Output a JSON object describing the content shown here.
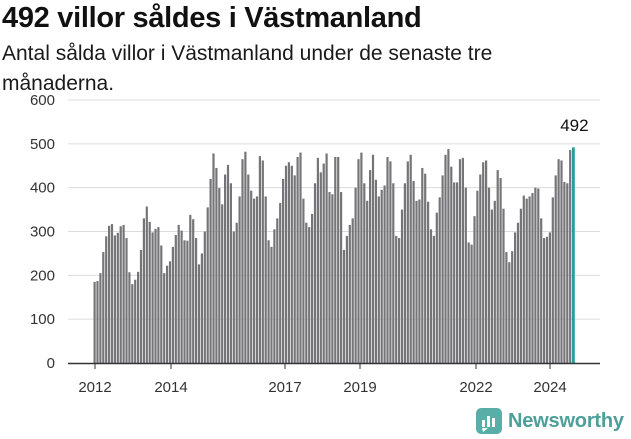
{
  "title": "492 villor såldes i Västmanland",
  "subtitle": "Antal sålda villor i Västmanland under de senaste tre månaderna.",
  "brand": "Newsworthy",
  "colors": {
    "bar": "#757478",
    "highlight": "#2e9c9a",
    "grid": "#dcdcdc",
    "axis": "#333333"
  },
  "chart_data": {
    "type": "bar",
    "x_tick_labels": [
      "2012",
      "2014",
      "2017",
      "2019",
      "2022",
      "2024"
    ],
    "y_ticks": [
      0,
      100,
      200,
      300,
      400,
      500,
      600
    ],
    "ylim": [
      0,
      600
    ],
    "annotation": "492",
    "highlight_last": true,
    "values": [
      185,
      187,
      205,
      253,
      289,
      313,
      317,
      291,
      297,
      312,
      315,
      285,
      207,
      180,
      190,
      208,
      258,
      330,
      357,
      322,
      298,
      306,
      310,
      268,
      205,
      222,
      232,
      265,
      292,
      315,
      302,
      280,
      279,
      338,
      328,
      285,
      225,
      250,
      300,
      355,
      420,
      478,
      445,
      399,
      362,
      430,
      452,
      410,
      300,
      320,
      380,
      465,
      482,
      430,
      393,
      375,
      380,
      472,
      462,
      380,
      280,
      265,
      305,
      330,
      365,
      420,
      450,
      458,
      450,
      428,
      470,
      480,
      375,
      320,
      310,
      340,
      410,
      468,
      435,
      455,
      478,
      390,
      385,
      470,
      470,
      390,
      258,
      290,
      315,
      330,
      400,
      465,
      480,
      410,
      370,
      440,
      475,
      418,
      380,
      395,
      405,
      470,
      460,
      410,
      290,
      285,
      350,
      410,
      460,
      475,
      415,
      370,
      373,
      445,
      432,
      368,
      305,
      290,
      343,
      378,
      428,
      475,
      488,
      448,
      412,
      412,
      465,
      468,
      400,
      275,
      270,
      335,
      393,
      430,
      458,
      462,
      400,
      350,
      370,
      440,
      422,
      352,
      253,
      230,
      255,
      298,
      320,
      352,
      382,
      375,
      380,
      388,
      400,
      398,
      330,
      285,
      288,
      298,
      378,
      428,
      465,
      462,
      413,
      410,
      486,
      492
    ]
  }
}
